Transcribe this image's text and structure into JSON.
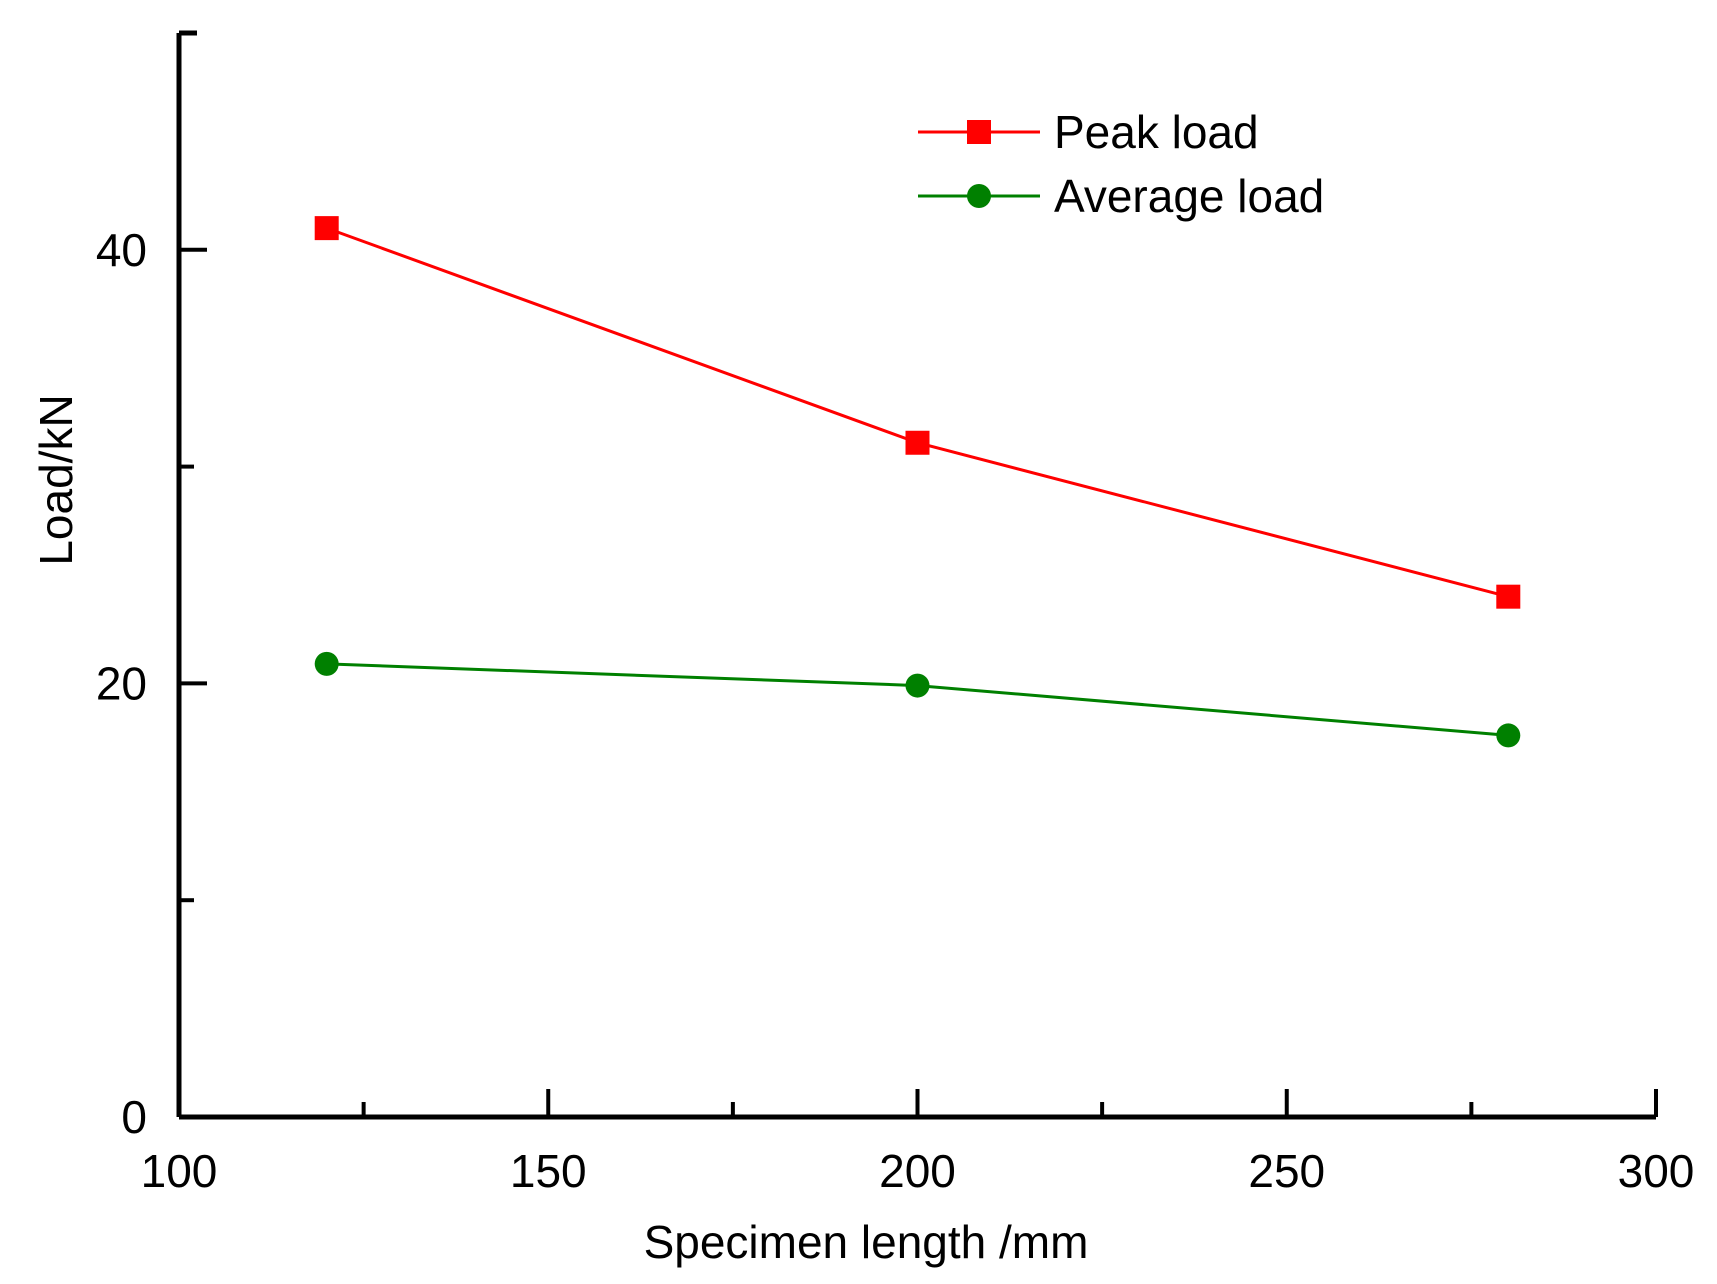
{
  "chart_data": {
    "type": "line",
    "xlabel": "Specimen length /mm",
    "ylabel": "Load/kN",
    "xlim": [
      100,
      300
    ],
    "ylim": [
      0,
      50
    ],
    "x_major_ticks": [
      100,
      150,
      200,
      250,
      300
    ],
    "x_minor_ticks": [
      125,
      175,
      225,
      275
    ],
    "y_major_ticks": [
      0,
      20,
      40
    ],
    "y_minor_ticks": [
      10,
      30
    ],
    "x_tick_labels": [
      "100",
      "150",
      "200",
      "250",
      "300"
    ],
    "y_tick_labels": [
      "0",
      "20",
      "40"
    ],
    "x": [
      120,
      200,
      280
    ],
    "series": [
      {
        "name": "Peak load",
        "values": [
          41.0,
          31.1,
          24.0
        ],
        "color": "#ff0000",
        "marker": "square"
      },
      {
        "name": "Average load",
        "values": [
          20.9,
          19.9,
          17.6
        ],
        "color": "#008000",
        "marker": "circle"
      }
    ],
    "legend_position": "top-right",
    "grid": false
  }
}
